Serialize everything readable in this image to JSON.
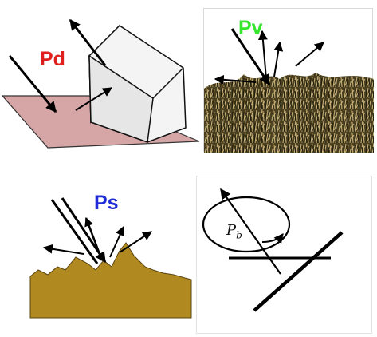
{
  "labels": {
    "pd": "Pd",
    "pv": "Pv",
    "ps": "Ps",
    "pb": "Pb"
  },
  "colors": {
    "pd": "#e0201e",
    "pv": "#35e62c",
    "ps": "#1f2bd6",
    "ground_pd": "#d6a6a6",
    "ground_ps": "#b08a20",
    "vegetation": "#3a3418"
  }
}
